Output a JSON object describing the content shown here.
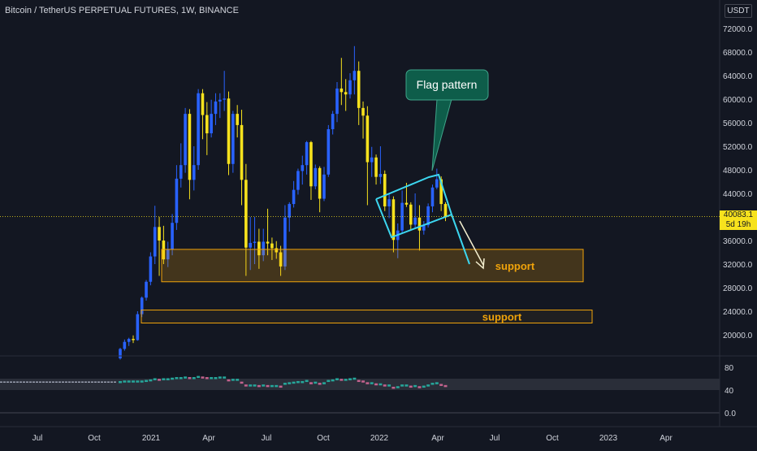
{
  "header": {
    "title": "Bitcoin / TetherUS PERPETUAL FUTURES, 1W, BINANCE",
    "currency": "USDT"
  },
  "price_tag": {
    "price": "40083.1",
    "countdown": "5d 19h",
    "value": 40083.1
  },
  "annotations": {
    "flag_label": "Flag pattern",
    "support_upper": "support",
    "support_lower": "support"
  },
  "colors": {
    "background": "#131722",
    "up": "#2962ff",
    "down": "#f7e21d",
    "support_fill": "#3b2a12",
    "support_border": "#f0a30a",
    "support_text": "#f0a30a",
    "flag_line": "#3cd6ef",
    "callout_fill": "#0e5d4a",
    "callout_border": "#3fa58a",
    "grid": "#1e222d",
    "axis_text": "#d1d4dc",
    "osc_up": "#26a69a",
    "osc_down": "#c2628d"
  },
  "chart_data": [
    {
      "type": "candlestick",
      "ylim": [
        15000,
        76000
      ],
      "y_ticks": [
        20000,
        24000,
        28000,
        32000,
        36000,
        40000,
        44000,
        48000,
        52000,
        56000,
        60000,
        64000,
        68000,
        72000
      ],
      "y_tick_labels": [
        "20000.0",
        "24000.0",
        "28000.0",
        "32000.0",
        "36000.0",
        "40000.0",
        "44000.0",
        "48000.0",
        "52000.0",
        "56000.0",
        "60000.0",
        "64000.0",
        "68000.0",
        "72000.0"
      ],
      "x_tick_labels": [
        "Jul",
        "Oct",
        "2021",
        "Apr",
        "Jul",
        "Oct",
        "2022",
        "Apr",
        "Jul",
        "Oct",
        "2023",
        "Apr"
      ],
      "grid": false,
      "support_zones": [
        {
          "label": "support",
          "low": 29000,
          "high": 34500
        },
        {
          "label": "support",
          "low": 22000,
          "high": 24200
        }
      ],
      "series": [
        {
          "name": "BTCUSDT 1W",
          "values": [
            [
              16000,
              17800,
              15800,
              17600
            ],
            [
              17600,
              19200,
              17300,
              18800
            ],
            [
              18800,
              19500,
              18100,
              19300
            ],
            [
              19300,
              19900,
              18600,
              19100
            ],
            [
              19100,
              24000,
              19000,
              23500
            ],
            [
              23500,
              26500,
              23000,
              26300
            ],
            [
              26300,
              29300,
              25800,
              29000
            ],
            [
              29000,
              34000,
              28400,
              33300
            ],
            [
              33300,
              41900,
              32000,
              38300
            ],
            [
              38300,
              40000,
              30000,
              36000
            ],
            [
              36000,
              38500,
              32000,
              32800
            ],
            [
              32800,
              35800,
              31500,
              34500
            ],
            [
              34500,
              40500,
              33500,
              39000
            ],
            [
              39000,
              48800,
              37800,
              46500
            ],
            [
              46500,
              52500,
              45000,
              48800
            ],
            [
              48800,
              58500,
              47500,
              57500
            ],
            [
              57500,
              58300,
              43000,
              46300
            ],
            [
              46300,
              52000,
              44500,
              48800
            ],
            [
              48800,
              61700,
              48000,
              61000
            ],
            [
              61000,
              61700,
              53200,
              57300
            ],
            [
              57300,
              59500,
              50500,
              54200
            ],
            [
              54200,
              59900,
              53500,
              57500
            ],
            [
              57500,
              61000,
              55600,
              59600
            ],
            [
              59600,
              61000,
              56800,
              59900
            ],
            [
              59900,
              64800,
              58000,
              60100
            ],
            [
              60100,
              61300,
              47100,
              49000
            ],
            [
              49000,
              58000,
              47500,
              57500
            ],
            [
              57500,
              59000,
              53500,
              55600
            ],
            [
              55600,
              58200,
              42000,
              46300
            ],
            [
              46300,
              49000,
              30000,
              34800
            ],
            [
              34800,
              40000,
              31000,
              35600
            ],
            [
              35600,
              40000,
              32000,
              35800
            ],
            [
              35800,
              38000,
              31200,
              33500
            ],
            [
              33500,
              38000,
              32500,
              35800
            ],
            [
              35800,
              41400,
              33500,
              35500
            ],
            [
              35500,
              36500,
              32700,
              34700
            ],
            [
              34700,
              35900,
              32900,
              34000
            ],
            [
              34000,
              35100,
              30000,
              31600
            ],
            [
              31600,
              42000,
              31000,
              39900
            ],
            [
              39900,
              42500,
              37500,
              42200
            ],
            [
              42200,
              46100,
              41600,
              44600
            ],
            [
              44600,
              48200,
              43800,
              47800
            ],
            [
              47800,
              50400,
              45500,
              48800
            ],
            [
              48800,
              52900,
              47200,
              52700
            ],
            [
              52700,
              52900,
              42900,
              45200
            ],
            [
              45200,
              48900,
              44700,
              48300
            ],
            [
              48300,
              48600,
              40800,
              43100
            ],
            [
              43100,
              48500,
              42700,
              47200
            ],
            [
              47200,
              55600,
              46800,
              54900
            ],
            [
              54900,
              58000,
              54000,
              57500
            ],
            [
              57500,
              62900,
              56100,
              61800
            ],
            [
              61800,
              67000,
              59000,
              61200
            ],
            [
              61200,
              63400,
              58000,
              60800
            ],
            [
              60800,
              64400,
              60100,
              63200
            ],
            [
              63200,
              69000,
              60800,
              64800
            ],
            [
              64800,
              66400,
              55600,
              58500
            ],
            [
              58500,
              59600,
              53300,
              57200
            ],
            [
              57200,
              58800,
              42000,
              49300
            ],
            [
              49300,
              51900,
              46800,
              50100
            ],
            [
              50100,
              50600,
              45500,
              46800
            ],
            [
              46800,
              52000,
              45600,
              47300
            ],
            [
              47300,
              47900,
              41000,
              41800
            ],
            [
              41800,
              44000,
              39800,
              43000
            ],
            [
              43000,
              43500,
              34000,
              36100
            ],
            [
              36100,
              38900,
              33000,
              37700
            ],
            [
              37700,
              44500,
              37300,
              42400
            ],
            [
              42400,
              45800,
              41700,
              42100
            ],
            [
              42100,
              42500,
              37800,
              38700
            ],
            [
              38700,
              44000,
              38000,
              39900
            ],
            [
              39900,
              42000,
              34300,
              37700
            ],
            [
              37700,
              39300,
              37000,
              38600
            ],
            [
              38600,
              42300,
              38200,
              41800
            ],
            [
              41800,
              45500,
              40800,
              45000
            ],
            [
              45000,
              48200,
              44700,
              46400
            ],
            [
              46400,
              46900,
              41000,
              42200
            ],
            [
              42200,
              42500,
              39300,
              40083.1
            ]
          ]
        }
      ]
    },
    {
      "type": "line",
      "title": "",
      "ylim": [
        0,
        100
      ],
      "y_ticks": [
        0,
        40,
        80
      ],
      "y_tick_labels": [
        "0.0",
        "40",
        "80"
      ],
      "band": [
        40,
        60
      ],
      "series": [
        {
          "values": [
            54,
            55,
            55,
            55,
            55,
            55,
            56,
            57,
            59,
            58,
            59,
            59,
            60,
            61,
            61,
            62,
            61,
            61,
            63,
            62,
            61,
            61,
            61,
            62,
            62,
            57,
            58,
            58,
            53,
            48,
            48,
            48,
            47,
            48,
            47,
            47,
            47,
            46,
            51,
            52,
            53,
            54,
            54,
            56,
            52,
            53,
            51,
            52,
            56,
            57,
            59,
            58,
            58,
            59,
            60,
            56,
            55,
            52,
            52,
            50,
            50,
            48,
            48,
            44,
            45,
            48,
            48,
            46,
            47,
            45,
            46,
            48,
            51,
            52,
            49,
            47
          ]
        }
      ]
    }
  ]
}
